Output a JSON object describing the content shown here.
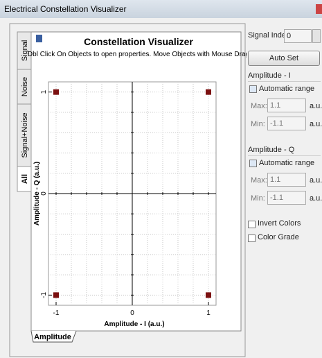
{
  "window": {
    "title": "Electrical Constellation Visualizer"
  },
  "tabs": [
    "Signal",
    "Noise",
    "Signal+Noise",
    "All"
  ],
  "bottom_tab": "Amplitude",
  "chart_data": {
    "type": "scatter",
    "title": "Constellation Visualizer",
    "subtitle": "Dbl Click On Objects to open properties.  Move Objects with Mouse Drag",
    "x_label": "Amplitude - I (a.u.)",
    "y_label": "Amplitude - Q (a.u.)",
    "x": [
      -1,
      1,
      -1,
      1
    ],
    "values": [
      1,
      1,
      -1,
      -1
    ],
    "color": "#7b1010",
    "xlim": [
      -1.1,
      1.1
    ],
    "ylim": [
      -1.1,
      1.1
    ],
    "xticks": [
      -1,
      0,
      1
    ],
    "yticks": [
      -1,
      0,
      1
    ],
    "minor_xticks": [
      -1,
      -0.8,
      -0.6,
      -0.4,
      -0.2,
      0,
      0.2,
      0.4,
      0.6,
      0.8,
      1
    ],
    "minor_yticks": [
      -1,
      -0.8,
      -0.6,
      -0.4,
      -0.2,
      0,
      0.2,
      0.4,
      0.6,
      0.8,
      1
    ],
    "grid": true
  },
  "panel": {
    "signal_index_label": "Signal Index:",
    "signal_index": 0,
    "auto_set": "Auto Set",
    "groups": [
      {
        "title": "Amplitude - I",
        "auto": "Automatic range",
        "max_label": "Max:",
        "max": 1.1,
        "min_label": "Min:",
        "min": -1.1,
        "unit": "a.u."
      },
      {
        "title": "Amplitude - Q",
        "auto": "Automatic range",
        "max_label": "Max:",
        "max": 1.1,
        "min_label": "Min:",
        "min": -1.1,
        "unit": "a.u."
      }
    ],
    "invert": "Invert Colors",
    "grade": "Color Grade"
  }
}
